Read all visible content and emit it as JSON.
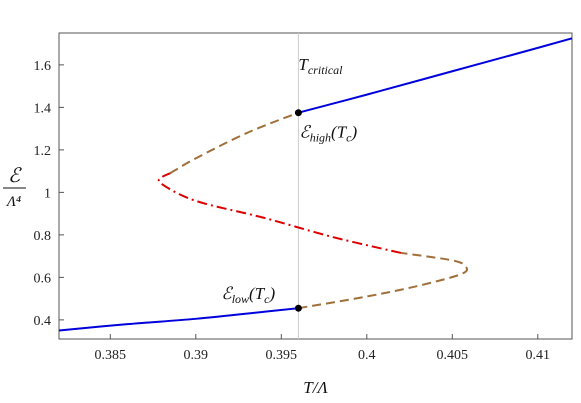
{
  "chart_data": {
    "type": "line",
    "title": "",
    "xlabel": "T/Λ",
    "ylabel": {
      "numerator": "ℰ",
      "denominator": "Λ⁴"
    },
    "xlim": [
      0.382,
      0.412
    ],
    "ylim": [
      0.31,
      1.75
    ],
    "x_ticks": [
      0.385,
      0.39,
      0.395,
      0.4,
      0.405,
      0.41
    ],
    "x_tick_labels": [
      "0.385",
      "0.39",
      "0.395",
      "0.4",
      "0.405",
      "0.41"
    ],
    "y_ticks": [
      0.4,
      0.6,
      0.8,
      1.0,
      1.2,
      1.4,
      1.6
    ],
    "y_tick_labels": [
      "0.4",
      "0.6",
      "0.8",
      "1",
      "1.2",
      "1.4",
      "1.6"
    ],
    "grid": false,
    "critical_line": {
      "x": 0.396,
      "label": "T",
      "label_sub": "critical",
      "color": "#cccccc"
    },
    "series": [
      {
        "style": "solid",
        "color": "#0000dd",
        "points": [
          [
            0.382,
            0.35
          ],
          [
            0.386,
            0.38
          ],
          [
            0.39,
            0.405
          ],
          [
            0.394,
            0.438
          ],
          [
            0.396,
            0.455
          ]
        ]
      },
      {
        "style": "dashed",
        "color": "#a0703a",
        "points": [
          [
            0.396,
            0.455
          ],
          [
            0.4,
            0.51
          ],
          [
            0.403,
            0.56
          ],
          [
            0.4055,
            0.615
          ],
          [
            0.4058,
            0.65
          ],
          [
            0.405,
            0.68
          ],
          [
            0.402,
            0.715
          ]
        ]
      },
      {
        "style": "dashdot",
        "color": "#dd0000",
        "points": [
          [
            0.402,
            0.715
          ],
          [
            0.398,
            0.79
          ],
          [
            0.394,
            0.88
          ],
          [
            0.39,
            0.96
          ],
          [
            0.388,
            1.04
          ],
          [
            0.388,
            1.07
          ],
          [
            0.3885,
            1.09
          ]
        ]
      },
      {
        "style": "dashed",
        "color": "#a0703a",
        "points": [
          [
            0.3885,
            1.09
          ],
          [
            0.39,
            1.16
          ],
          [
            0.393,
            1.28
          ],
          [
            0.396,
            1.375
          ]
        ]
      },
      {
        "style": "solid",
        "color": "#0000dd",
        "points": [
          [
            0.396,
            1.375
          ],
          [
            0.4,
            1.46
          ],
          [
            0.405,
            1.57
          ],
          [
            0.41,
            1.68
          ],
          [
            0.412,
            1.725
          ]
        ]
      }
    ],
    "markers": [
      {
        "x": 0.396,
        "y": 1.375,
        "label": "ℰ",
        "label_sub": "high",
        "label_suffix": "(T",
        "label_suffix_sub": "c",
        "label_end": ")"
      },
      {
        "x": 0.396,
        "y": 0.455,
        "label": "ℰ",
        "label_sub": "low",
        "label_suffix": "(T",
        "label_suffix_sub": "c",
        "label_end": ")"
      }
    ]
  }
}
